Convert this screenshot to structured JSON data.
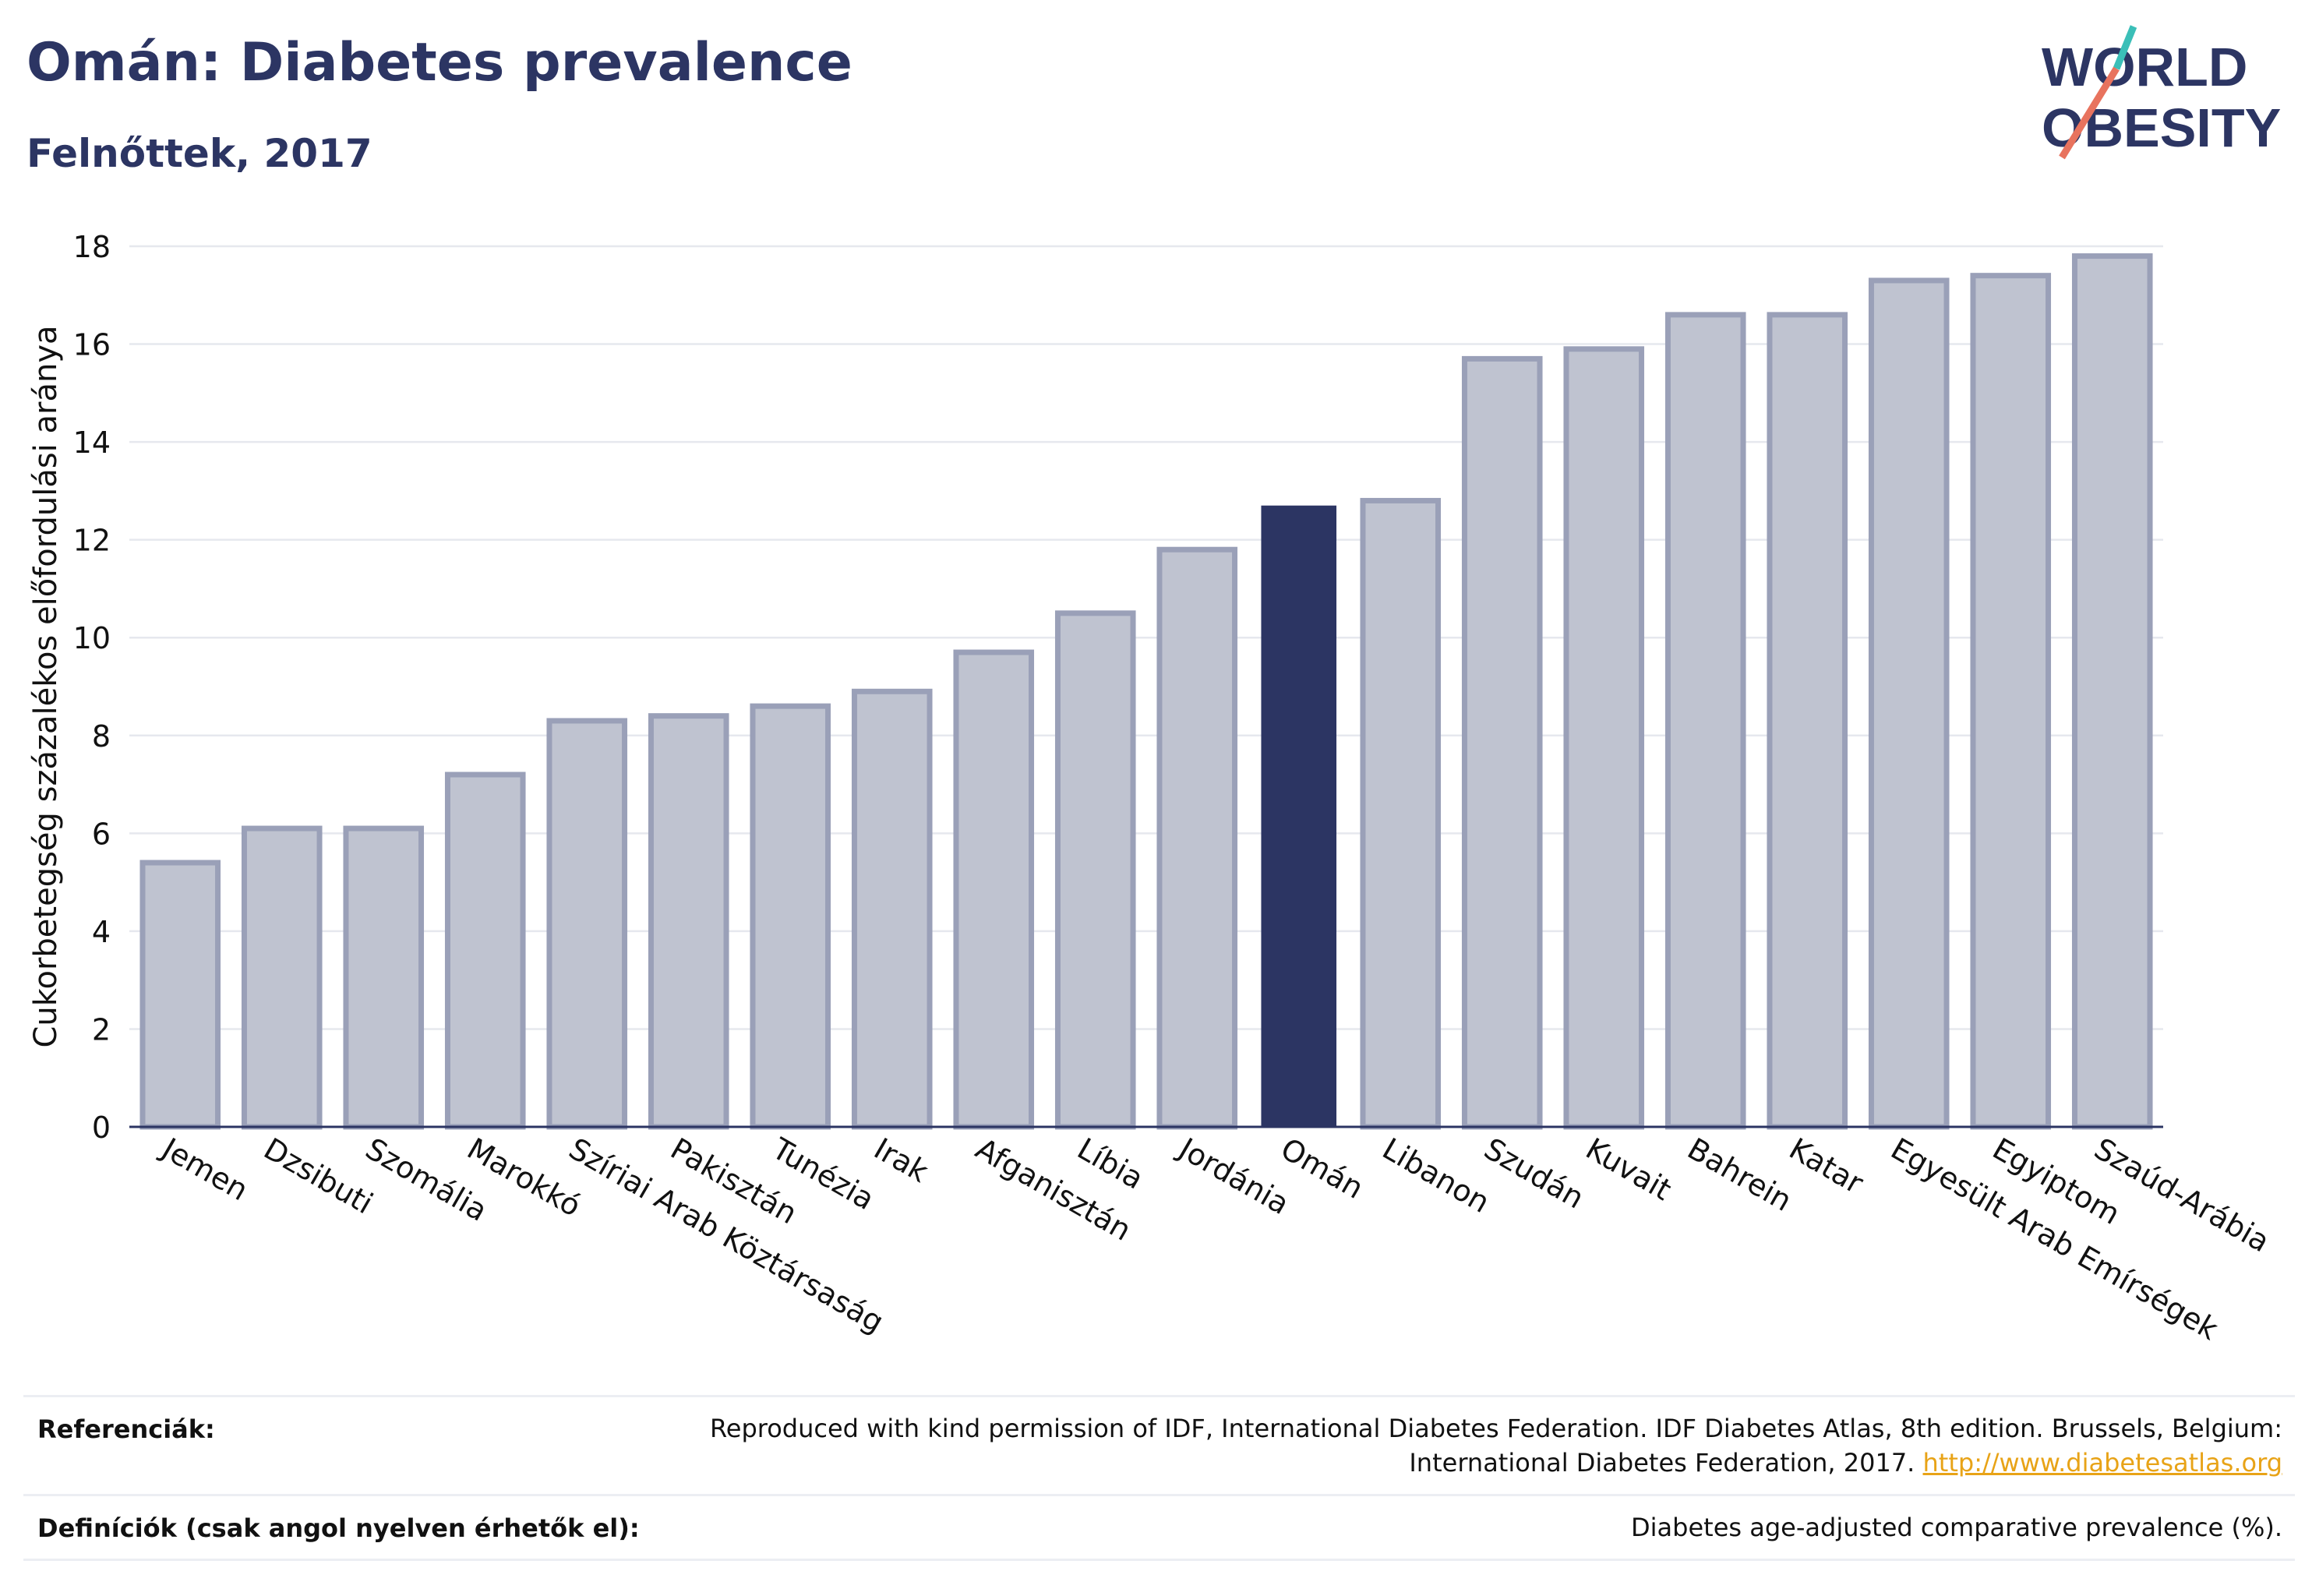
{
  "header": {
    "title": "Omán: Diabetes prevalence",
    "subtitle": "Felnőttek, 2017"
  },
  "logo": {
    "line1": "WORLD",
    "line2": "OBESITY"
  },
  "chart_data": {
    "type": "bar",
    "ylabel": "Cukorbetegség százalékos előfordulási aránya",
    "xlabel": "",
    "ylim": [
      0,
      18
    ],
    "yticks": [
      0,
      2,
      4,
      6,
      8,
      10,
      12,
      14,
      16,
      18
    ],
    "grid": true,
    "highlight": "Omán",
    "colors": {
      "bar": "#bfc3d0",
      "bar_border": "#9aa0b8",
      "highlight": "#2c3563"
    },
    "categories": [
      "Jemen",
      "Dzsibuti",
      "Szomália",
      "Marokkó",
      "Szíriai Arab Köztársaság",
      "Pakisztán",
      "Tunézia",
      "Irak",
      "Afganisztán",
      "Líbia",
      "Jordánia",
      "Omán",
      "Libanon",
      "Szudán",
      "Kuvait",
      "Bahrein",
      "Katar",
      "Egyesült Arab Emírségek",
      "Egyiptom",
      "Szaúd-Arábia"
    ],
    "values": [
      5.4,
      6.1,
      6.1,
      7.2,
      8.3,
      8.4,
      8.6,
      8.9,
      9.7,
      10.5,
      11.8,
      12.7,
      12.8,
      15.7,
      15.9,
      16.6,
      16.6,
      17.3,
      17.4,
      17.8
    ]
  },
  "references": {
    "label": "Referenciák:",
    "text": "Reproduced with kind permission of IDF, International Diabetes Federation. IDF Diabetes Atlas, 8th edition. Brussels, Belgium: International Diabetes Federation, 2017.",
    "link": "http://www.diabetesatlas.org"
  },
  "definitions": {
    "label": "Definíciók (csak angol nyelven érhetők el):",
    "text": "Diabetes age-adjusted comparative prevalence (%)."
  }
}
